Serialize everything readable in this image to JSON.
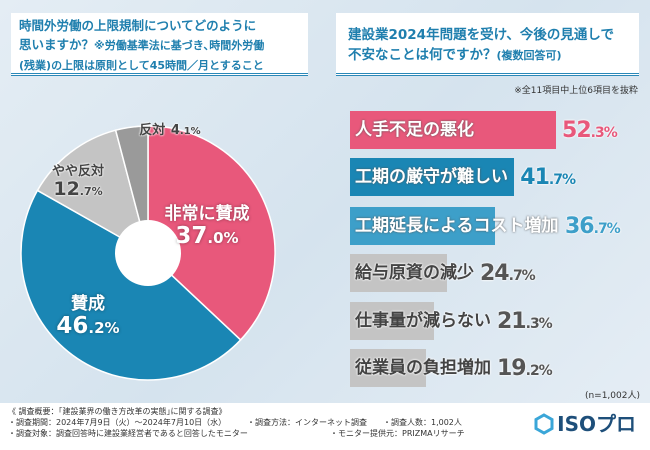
{
  "left_question": {
    "line1": "時間外労働の上限規制についてどのように",
    "line2a": "思いますか？",
    "line2b": "※労働基準法に基づき､時間外労働",
    "line3a": "(残業)",
    "line3b": "の上限は原則として45時間／月とすること"
  },
  "right_question": {
    "line1": "建設業2024年問題を受け、今後の見通しで",
    "line2a": "不安なことは何ですか？",
    "line2b": "(複数回答可)"
  },
  "note": "※全11項目中上位6項目を抜粋",
  "sample": "(n=1,002人)",
  "colors": {
    "pink": "#e8587b",
    "blue": "#1a86b4",
    "lightblue": "#3d9fc9",
    "gray": "#c4c4c4",
    "darkgray": "#9a9a9a"
  },
  "chart_data": [
    {
      "type": "pie",
      "donut": true,
      "start": "top",
      "direction": "clockwise",
      "slices": [
        {
          "label": "非常に賛成",
          "int": "37",
          "dec": ".0",
          "unit": "%",
          "value": 37.0,
          "color": "#e8587b"
        },
        {
          "label": "賛成",
          "int": "46",
          "dec": ".2",
          "unit": "%",
          "value": 46.2,
          "color": "#1a86b4"
        },
        {
          "label": "やや反対",
          "int": "12",
          "dec": ".7",
          "unit": "%",
          "value": 12.7,
          "color": "#c4c4c4"
        },
        {
          "label": "反対",
          "int": "4",
          "dec": ".1",
          "unit": "%",
          "value": 4.1,
          "color": "#9a9a9a"
        }
      ]
    },
    {
      "type": "bar",
      "orientation": "horizontal",
      "xlim": [
        0,
        100
      ],
      "bars": [
        {
          "label": "人手不足の悪化",
          "int": "52",
          "dec": ".3",
          "unit": "%",
          "value": 52.3,
          "color": "#e8587b",
          "valcolor": "#e8587b"
        },
        {
          "label": "工期の厳守が難しい",
          "int": "41",
          "dec": ".7",
          "unit": "%",
          "value": 41.7,
          "color": "#1a86b4",
          "valcolor": "#1a86b4"
        },
        {
          "label": "工期延長によるコスト増加",
          "int": "36",
          "dec": ".7",
          "unit": "%",
          "value": 36.7,
          "color": "#3d9fc9",
          "valcolor": "#3d9fc9"
        },
        {
          "label": "給与原資の減少",
          "int": "24",
          "dec": ".7",
          "unit": "%",
          "value": 24.7,
          "color": "#c4c4c4",
          "valcolor": "#555555"
        },
        {
          "label": "仕事量が減らない",
          "int": "21",
          "dec": ".3",
          "unit": "%",
          "value": 21.3,
          "color": "#c4c4c4",
          "valcolor": "#555555"
        },
        {
          "label": "従業員の負担増加",
          "int": "19",
          "dec": ".2",
          "unit": "%",
          "value": 19.2,
          "color": "#c4c4c4",
          "valcolor": "#555555"
        }
      ]
    }
  ],
  "footer": {
    "title": "《 調査概要：｢建設業界の働き方改革の実態｣に関する調査》",
    "period": "・調査期間：2024年7月9日（火）～2024年7月10日（水）",
    "method": "・調査方法：インターネット調査",
    "count": "・調査人数：1,002人",
    "target": "・調査対象：調査回答時に建設業経営者であると回答したモニター",
    "provider": "・モニター提供元：PRIZMAリサーチ",
    "logo": "ISOプロ"
  }
}
